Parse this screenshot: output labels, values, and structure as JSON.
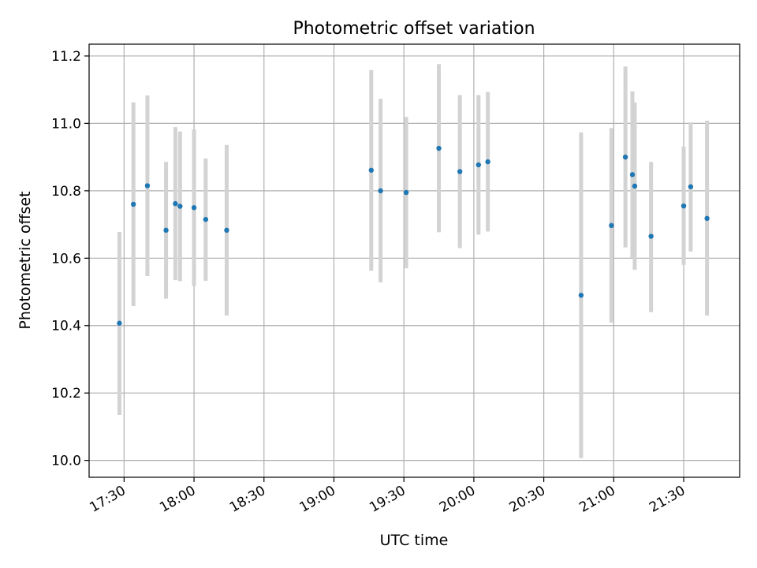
{
  "chart_data": {
    "type": "scatter",
    "title": "Photometric offset variation",
    "xlabel": "UTC time",
    "ylabel": "Photometric offset",
    "x_unit": "time_of_day",
    "xlim": [
      "17:15",
      "21:54"
    ],
    "ylim": [
      9.95,
      11.235
    ],
    "xticks": [
      "17:30",
      "18:00",
      "18:30",
      "19:00",
      "19:30",
      "20:00",
      "20:30",
      "21:00",
      "21:30"
    ],
    "yticks": [
      "10.0",
      "10.2",
      "10.4",
      "10.6",
      "10.8",
      "11.0",
      "11.2"
    ],
    "grid": true,
    "legend": "none",
    "colors": {
      "point": "#1f77b4",
      "errorbar": "#d3d3d3",
      "grid": "#b0b0b0"
    },
    "series": [
      {
        "points": [
          {
            "x": "17:28",
            "y": 10.407,
            "ylow": 10.135,
            "yhigh": 10.678
          },
          {
            "x": "17:34",
            "y": 10.76,
            "ylow": 10.458,
            "yhigh": 11.062
          },
          {
            "x": "17:40",
            "y": 10.815,
            "ylow": 10.547,
            "yhigh": 11.083
          },
          {
            "x": "17:48",
            "y": 10.683,
            "ylow": 10.48,
            "yhigh": 10.886
          },
          {
            "x": "17:52",
            "y": 10.762,
            "ylow": 10.535,
            "yhigh": 10.989
          },
          {
            "x": "17:54",
            "y": 10.754,
            "ylow": 10.532,
            "yhigh": 10.976
          },
          {
            "x": "18:00",
            "y": 10.75,
            "ylow": 10.518,
            "yhigh": 10.982
          },
          {
            "x": "18:05",
            "y": 10.715,
            "ylow": 10.533,
            "yhigh": 10.896
          },
          {
            "x": "18:14",
            "y": 10.683,
            "ylow": 10.43,
            "yhigh": 10.936
          },
          {
            "x": "19:16",
            "y": 10.861,
            "ylow": 10.563,
            "yhigh": 11.158
          },
          {
            "x": "19:20",
            "y": 10.8,
            "ylow": 10.528,
            "yhigh": 11.073
          },
          {
            "x": "19:31",
            "y": 10.795,
            "ylow": 10.57,
            "yhigh": 11.019
          },
          {
            "x": "19:45",
            "y": 10.926,
            "ylow": 10.677,
            "yhigh": 11.176
          },
          {
            "x": "19:54",
            "y": 10.857,
            "ylow": 10.63,
            "yhigh": 11.084
          },
          {
            "x": "20:02",
            "y": 10.877,
            "ylow": 10.67,
            "yhigh": 11.084
          },
          {
            "x": "20:06",
            "y": 10.886,
            "ylow": 10.679,
            "yhigh": 11.093
          },
          {
            "x": "20:46",
            "y": 10.49,
            "ylow": 10.007,
            "yhigh": 10.973
          },
          {
            "x": "20:59",
            "y": 10.697,
            "ylow": 10.409,
            "yhigh": 10.986
          },
          {
            "x": "21:05",
            "y": 10.9,
            "ylow": 10.632,
            "yhigh": 11.169
          },
          {
            "x": "21:08",
            "y": 10.848,
            "ylow": 10.601,
            "yhigh": 11.095
          },
          {
            "x": "21:09",
            "y": 10.814,
            "ylow": 10.566,
            "yhigh": 11.062
          },
          {
            "x": "21:16",
            "y": 10.665,
            "ylow": 10.44,
            "yhigh": 10.886
          },
          {
            "x": "21:30",
            "y": 10.755,
            "ylow": 10.58,
            "yhigh": 10.931
          },
          {
            "x": "21:33",
            "y": 10.812,
            "ylow": 10.62,
            "yhigh": 11.003
          },
          {
            "x": "21:40",
            "y": 10.718,
            "ylow": 10.43,
            "yhigh": 11.008
          }
        ]
      }
    ]
  }
}
